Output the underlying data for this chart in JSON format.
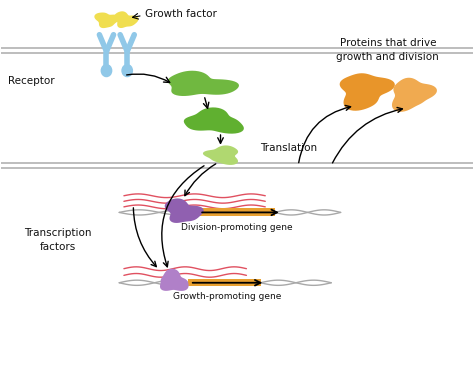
{
  "bg_color": "#ffffff",
  "membrane_color": "#b8b8b8",
  "growth_factor_color": "#f0de50",
  "receptor_color": "#90c8e8",
  "green_blob1_color": "#70b840",
  "green_blob2_color": "#60b030",
  "green_blob3_color": "#b0d870",
  "protein_color1": "#e8952a",
  "protein_color2": "#f0aa50",
  "tf_color": "#9060b0",
  "tf2_color": "#b080c8",
  "gene_bar_color": "#e8a030",
  "mrna_color": "#e05060",
  "dna_color": "#a8a8a8",
  "arrow_color": "#111111",
  "text_color": "#111111",
  "label_growth_factor": "Growth factor",
  "label_receptor": "Receptor",
  "label_proteins": "Proteins that drive\ngrowth and division",
  "label_translation": "Translation",
  "label_tf": "Transcription\nfactors",
  "label_div_gene": "Division-promoting gene",
  "label_growth_gene": "Growth-promoting gene",
  "figsize": [
    4.74,
    3.73
  ],
  "dpi": 100
}
